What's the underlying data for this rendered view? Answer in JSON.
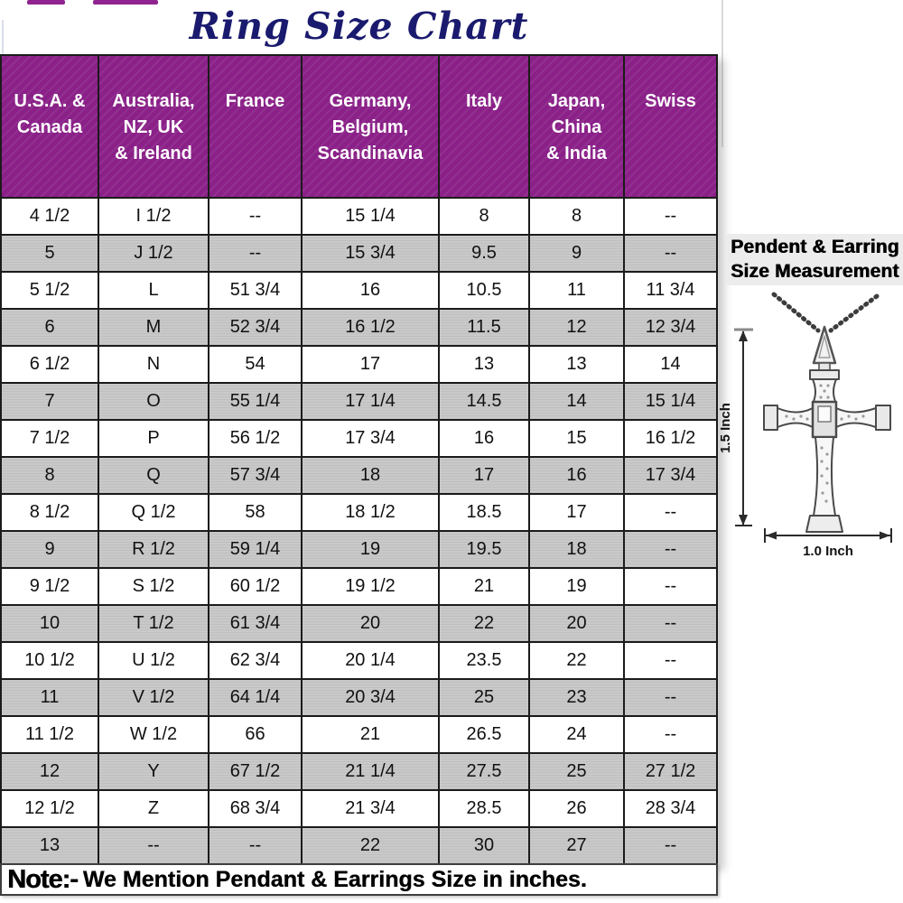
{
  "chart_data": {
    "type": "table",
    "title": "Ring Size Chart",
    "columns": [
      "U.S.A. &\nCanada",
      "Australia,\nNZ, UK\n& Ireland",
      "France",
      "Germany,\nBelgium,\nScandinavia",
      "Italy",
      "Japan,\nChina\n& India",
      "Swiss"
    ],
    "rows": [
      [
        "4 1/2",
        "I 1/2",
        "--",
        "15 1/4",
        "8",
        "8",
        "--"
      ],
      [
        "5",
        "J 1/2",
        "--",
        "15 3/4",
        "9.5",
        "9",
        "--"
      ],
      [
        "5 1/2",
        "L",
        "51 3/4",
        "16",
        "10.5",
        "11",
        "11 3/4"
      ],
      [
        "6",
        "M",
        "52 3/4",
        "16 1/2",
        "11.5",
        "12",
        "12 3/4"
      ],
      [
        "6 1/2",
        "N",
        "54",
        "17",
        "13",
        "13",
        "14"
      ],
      [
        "7",
        "O",
        "55 1/4",
        "17 1/4",
        "14.5",
        "14",
        "15 1/4"
      ],
      [
        "7 1/2",
        "P",
        "56 1/2",
        "17 3/4",
        "16",
        "15",
        "16 1/2"
      ],
      [
        "8",
        "Q",
        "57 3/4",
        "18",
        "17",
        "16",
        "17 3/4"
      ],
      [
        "8 1/2",
        "Q 1/2",
        "58",
        "18 1/2",
        "18.5",
        "17",
        "--"
      ],
      [
        "9",
        "R 1/2",
        "59 1/4",
        "19",
        "19.5",
        "18",
        "--"
      ],
      [
        "9 1/2",
        "S 1/2",
        "60 1/2",
        "19 1/2",
        "21",
        "19",
        "--"
      ],
      [
        "10",
        "T 1/2",
        "61 3/4",
        "20",
        "22",
        "20",
        "--"
      ],
      [
        "10 1/2",
        "U 1/2",
        "62 3/4",
        "20 1/4",
        "23.5",
        "22",
        "--"
      ],
      [
        "11",
        "V 1/2",
        "64 1/4",
        "20 3/4",
        "25",
        "23",
        "--"
      ],
      [
        "11 1/2",
        "W 1/2",
        "66",
        "21",
        "26.5",
        "24",
        "--"
      ],
      [
        "12",
        "Y",
        "67 1/2",
        "21 1/4",
        "27.5",
        "25",
        "27 1/2"
      ],
      [
        "12 1/2",
        "Z",
        "68 3/4",
        "21 3/4",
        "28.5",
        "26",
        "28 3/4"
      ],
      [
        "13",
        "--",
        "--",
        "22",
        "30",
        "27",
        "--"
      ]
    ],
    "layout": {
      "header_fill": "purple",
      "row_striping": "white / gray alternating",
      "grid": true
    }
  },
  "note": {
    "label": "Note:-",
    "text": "We Mention Pendant & Earrings Size in inches."
  },
  "pendant": {
    "heading": "Pendent & Earring\nSize Measurement",
    "height_label": "1.5 Inch",
    "width_label": "1.0 Inch"
  },
  "colors": {
    "header_bg": "#8a2088",
    "header_text": "#ffffff",
    "alt_row_bg": "#c9c9c9",
    "title_text": "#1a1a6e",
    "table_border": "#1b1b1b",
    "heading_box_bg": "#ececec"
  }
}
